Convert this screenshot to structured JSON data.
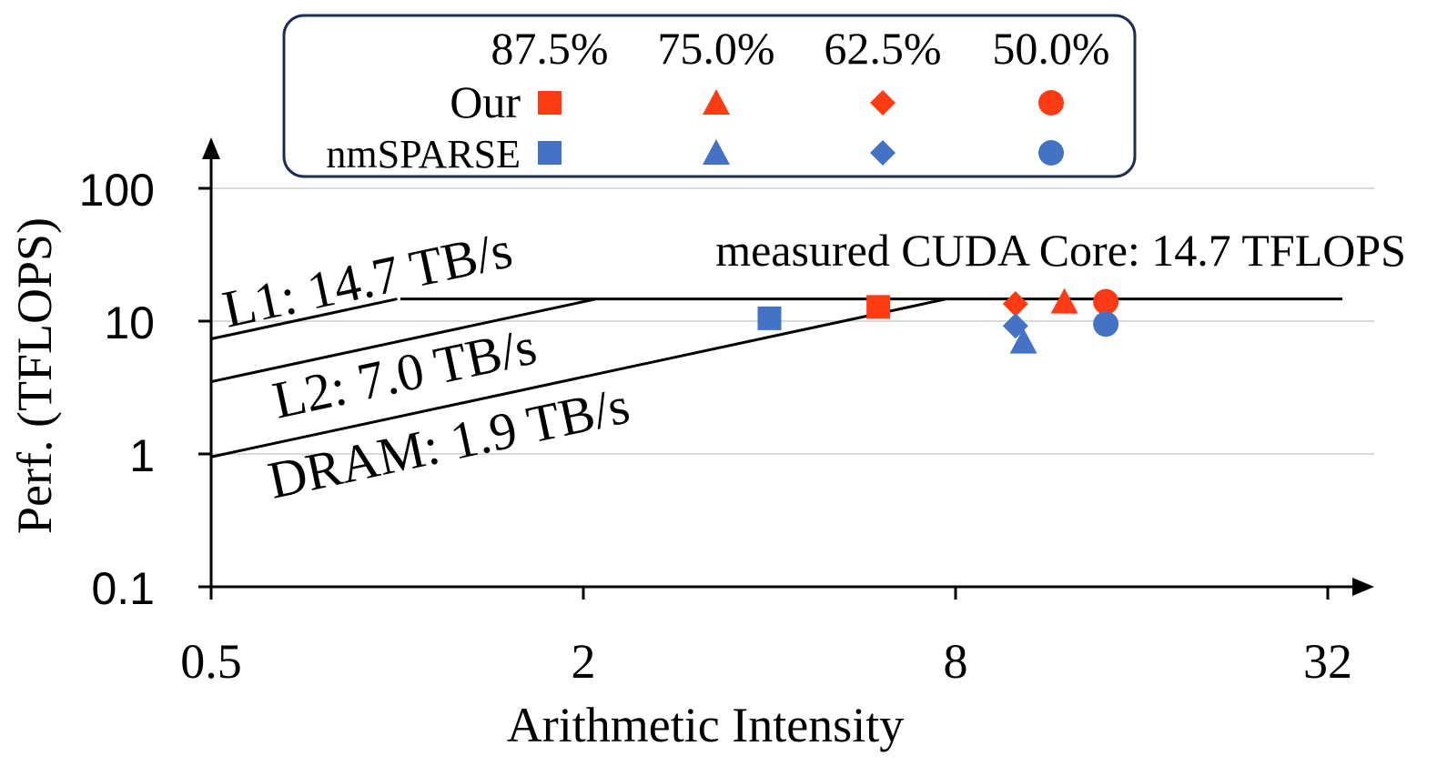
{
  "chart_data": {
    "type": "scatter",
    "title": "",
    "xlabel": "Arithmetic Intensity",
    "ylabel": "Perf. (TFLOPS)",
    "x_scale": "log2",
    "y_scale": "log10",
    "xlim": [
      0.5,
      40
    ],
    "ylim": [
      0.1,
      300
    ],
    "x_ticks": [
      0.5,
      2,
      8,
      32
    ],
    "x_tick_labels": [
      "0.5",
      "2",
      "8",
      "32"
    ],
    "y_ticks": [
      0.1,
      1,
      10,
      100
    ],
    "y_tick_labels": [
      "0.1",
      "1",
      "10",
      "100"
    ],
    "gridlines_y": [
      1,
      10,
      100
    ],
    "roofline": {
      "compute_peak_tflops": 14.7,
      "compute_label": "measured CUDA Core: 14.7 TFLOPS",
      "bandwidths": [
        {
          "name": "L1",
          "tbps": 14.7,
          "label": "L1: 14.7 TB/s"
        },
        {
          "name": "L2",
          "tbps": 7.0,
          "label": "L2: 7.0 TB/s"
        },
        {
          "name": "DRAM",
          "tbps": 1.9,
          "label": "DRAM: 1.9 TB/s"
        }
      ]
    },
    "legend": {
      "placement": "top-center",
      "columns": [
        "87.5%",
        "75.0%",
        "62.5%",
        "50.0%"
      ],
      "markers": [
        "square",
        "triangle",
        "diamond",
        "circle"
      ],
      "rows": [
        "Our",
        "nmSPARSE"
      ]
    },
    "series": [
      {
        "name": "Our",
        "color": "#FF3B14",
        "points": [
          {
            "sparsity": "87.5%",
            "marker": "square",
            "x": 6.0,
            "y": 12.8
          },
          {
            "sparsity": "75.0%",
            "marker": "triangle",
            "x": 12.0,
            "y": 14.0
          },
          {
            "sparsity": "62.5%",
            "marker": "diamond",
            "x": 10.0,
            "y": 13.5
          },
          {
            "sparsity": "50.0%",
            "marker": "circle",
            "x": 14.0,
            "y": 14.0
          }
        ]
      },
      {
        "name": "nmSPARSE",
        "color": "#4472C4",
        "points": [
          {
            "sparsity": "87.5%",
            "marker": "square",
            "x": 4.0,
            "y": 10.5
          },
          {
            "sparsity": "75.0%",
            "marker": "triangle",
            "x": 10.3,
            "y": 7.0
          },
          {
            "sparsity": "62.5%",
            "marker": "diamond",
            "x": 10.0,
            "y": 9.2
          },
          {
            "sparsity": "50.0%",
            "marker": "circle",
            "x": 14.0,
            "y": 9.5
          }
        ]
      }
    ]
  }
}
